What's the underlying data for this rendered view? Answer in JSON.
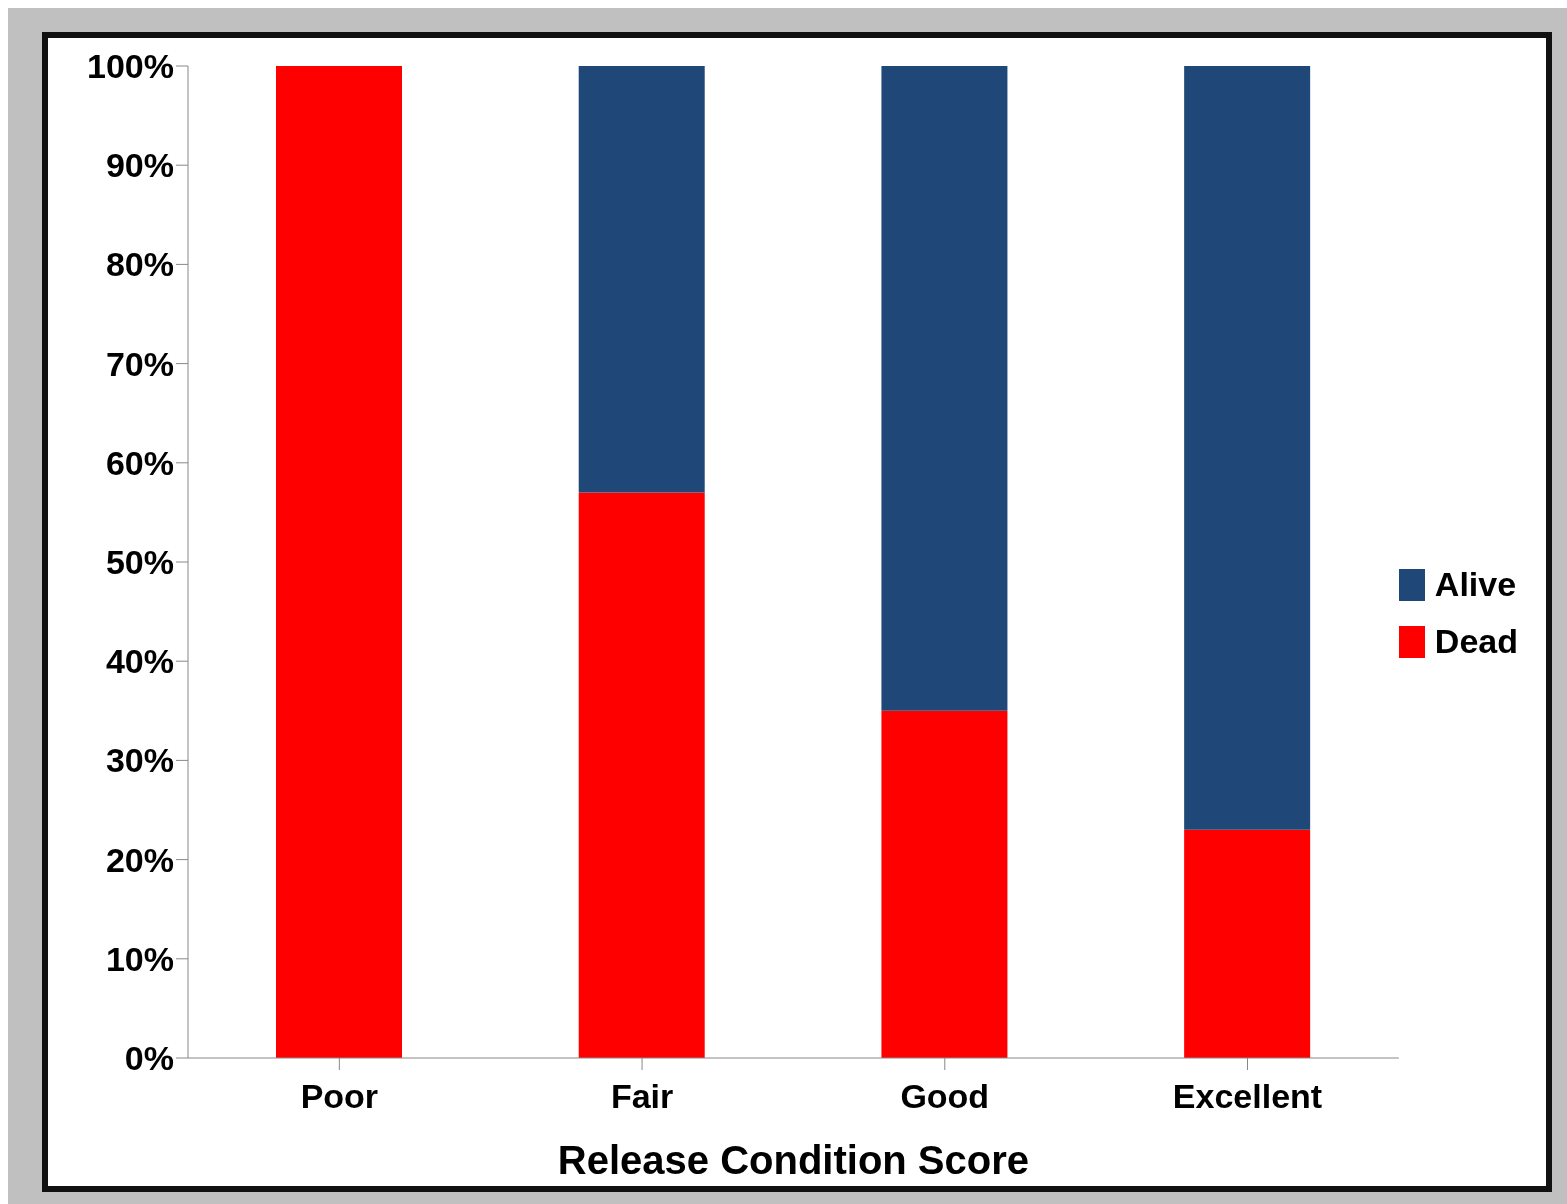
{
  "chart_data": {
    "type": "bar",
    "stacked": true,
    "xlabel": "Release Condition Score",
    "categories": [
      "Poor",
      "Fair",
      "Good",
      "Excellent"
    ],
    "series": [
      {
        "name": "Dead",
        "color": "#ff0000",
        "values": [
          100,
          57,
          35,
          23
        ]
      },
      {
        "name": "Alive",
        "color": "#1f4878",
        "values": [
          0,
          43,
          65,
          77
        ]
      }
    ],
    "ylim": [
      0,
      100
    ],
    "yticks": [
      {
        "value": 0,
        "label": "0%"
      },
      {
        "value": 10,
        "label": "10%"
      },
      {
        "value": 20,
        "label": "20%"
      },
      {
        "value": 30,
        "label": "30%"
      },
      {
        "value": 40,
        "label": "40%"
      },
      {
        "value": 50,
        "label": "50%"
      },
      {
        "value": 60,
        "label": "60%"
      },
      {
        "value": 70,
        "label": "70%"
      },
      {
        "value": 80,
        "label": "80%"
      },
      {
        "value": 90,
        "label": "90%"
      },
      {
        "value": 100,
        "label": "100%"
      }
    ],
    "grid": false,
    "legend": "right"
  }
}
